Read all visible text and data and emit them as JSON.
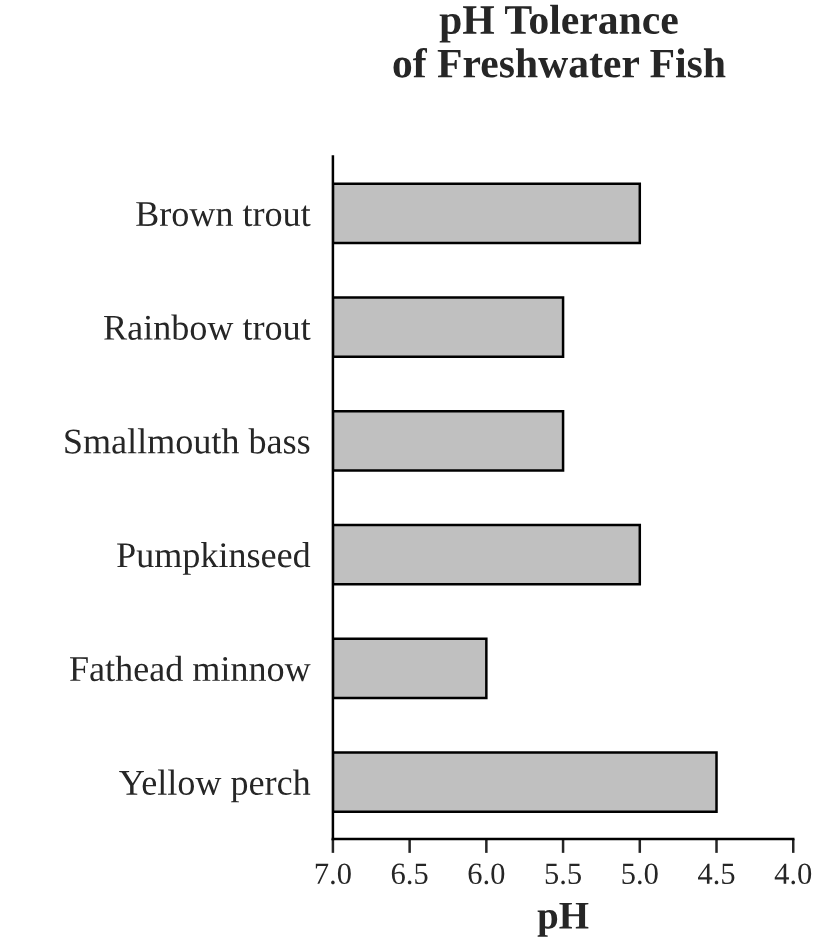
{
  "chart_data": {
    "type": "bar",
    "orientation": "horizontal",
    "title": "pH Tolerance\nof Freshwater Fish",
    "xlabel": "pH",
    "categories": [
      "Brown trout",
      "Rainbow trout",
      "Smallmouth bass",
      "Pumpkinseed",
      "Fathead minnow",
      "Yellow perch"
    ],
    "base": [
      7.0,
      7.0,
      7.0,
      7.0,
      7.0,
      7.0
    ],
    "values": [
      -2.0,
      -1.5,
      -1.5,
      -2.0,
      -1.0,
      -2.5
    ],
    "color": "#c0c0c0",
    "xlim": [
      7.0,
      4.0
    ],
    "xticks": [
      {
        "value": 7.0,
        "label": "7.0"
      },
      {
        "value": 6.5,
        "label": "6.5"
      },
      {
        "value": 6.0,
        "label": "6.0"
      },
      {
        "value": 5.5,
        "label": "5.5"
      },
      {
        "value": 5.0,
        "label": "5.0"
      },
      {
        "value": 4.5,
        "label": "4.5"
      },
      {
        "value": 4.0,
        "label": "4.0"
      }
    ],
    "grid": false,
    "legend": false
  }
}
